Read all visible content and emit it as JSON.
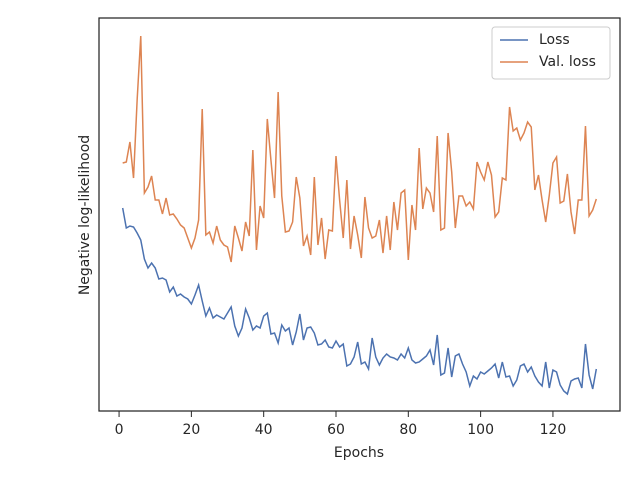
{
  "chart_data": {
    "type": "line",
    "x_label": "Epochs",
    "y_label": "Negative log-likelihood",
    "x": [
      1,
      2,
      3,
      4,
      5,
      6,
      7,
      8,
      9,
      10,
      11,
      12,
      13,
      14,
      15,
      16,
      17,
      18,
      19,
      20,
      21,
      22,
      23,
      24,
      25,
      26,
      27,
      28,
      29,
      30,
      31,
      32,
      33,
      34,
      35,
      36,
      37,
      38,
      39,
      40,
      41,
      42,
      43,
      44,
      45,
      46,
      47,
      48,
      49,
      50,
      51,
      52,
      53,
      54,
      55,
      56,
      57,
      58,
      59,
      60,
      61,
      62,
      63,
      64,
      65,
      66,
      67,
      68,
      69,
      70,
      71,
      72,
      73,
      74,
      75,
      76,
      77,
      78,
      79,
      80,
      81,
      82,
      83,
      84,
      85,
      86,
      87,
      88,
      89,
      90,
      91,
      92,
      93,
      94,
      95,
      96,
      97,
      98,
      99,
      100,
      101,
      102,
      103,
      104,
      105,
      106,
      107,
      108,
      109,
      110,
      111,
      112,
      113,
      114,
      115,
      116,
      117,
      118,
      119,
      120,
      121,
      122,
      123,
      124,
      125,
      126,
      127,
      128,
      129,
      130,
      131,
      132
    ],
    "series": [
      {
        "name": "Loss",
        "color": "#4c72b0",
        "values": [
          203,
          183,
          185,
          184,
          178,
          171,
          152,
          143,
          148,
          143,
          132,
          133,
          131,
          119,
          124,
          115,
          117,
          114,
          112,
          107,
          116,
          126,
          110,
          95,
          103,
          93,
          96,
          94,
          92,
          98,
          104,
          85,
          75,
          83,
          102,
          93,
          81,
          85,
          83,
          95,
          98,
          77,
          78,
          68,
          86,
          80,
          83,
          66,
          79,
          97,
          71,
          83,
          84,
          78,
          66,
          67,
          71,
          64,
          63,
          70,
          64,
          67,
          45,
          47,
          54,
          69,
          47,
          49,
          42,
          73,
          54,
          46,
          53,
          57,
          54,
          53,
          51,
          57,
          53,
          63,
          51,
          48,
          49,
          52,
          55,
          61,
          46,
          76,
          36,
          38,
          63,
          34,
          55,
          57,
          47,
          39,
          25,
          35,
          32,
          39,
          37,
          40,
          43,
          47,
          33,
          49,
          34,
          35,
          25,
          31,
          45,
          47,
          39,
          44,
          35,
          29,
          25,
          49,
          23,
          41,
          39,
          26,
          20,
          17,
          30,
          32,
          33,
          23,
          67,
          36,
          22,
          42
        ]
      },
      {
        "name": "Val. loss",
        "color": "#dd8452",
        "values": [
          248,
          249,
          269,
          233,
          311,
          375,
          218,
          224,
          235,
          211,
          211,
          197,
          213,
          196,
          197,
          192,
          186,
          183,
          173,
          163,
          173,
          191,
          302,
          176,
          179,
          168,
          185,
          171,
          166,
          164,
          149,
          185,
          173,
          160,
          189,
          175,
          261,
          161,
          205,
          193,
          292,
          251,
          213,
          319,
          215,
          179,
          180,
          189,
          234,
          213,
          165,
          175,
          156,
          234,
          166,
          193,
          152,
          181,
          180,
          255,
          211,
          173,
          231,
          162,
          195,
          176,
          153,
          214,
          183,
          173,
          175,
          191,
          158,
          195,
          161,
          209,
          181,
          218,
          221,
          151,
          206,
          181,
          263,
          202,
          223,
          218,
          199,
          275,
          181,
          183,
          278,
          239,
          183,
          215,
          215,
          205,
          209,
          202,
          249,
          239,
          231,
          249,
          236,
          194,
          199,
          233,
          231,
          304,
          280,
          283,
          271,
          278,
          289,
          284,
          221,
          236,
          211,
          189,
          216,
          248,
          254,
          208,
          210,
          237,
          199,
          177,
          211,
          211,
          285,
          195,
          201,
          212
        ]
      }
    ],
    "xlim": [
      -5.55,
      138.55
    ],
    "xticks": [
      0,
      20,
      40,
      60,
      80,
      100,
      120
    ],
    "ylim": [
      0,
      393
    ],
    "legend": "upper right"
  }
}
